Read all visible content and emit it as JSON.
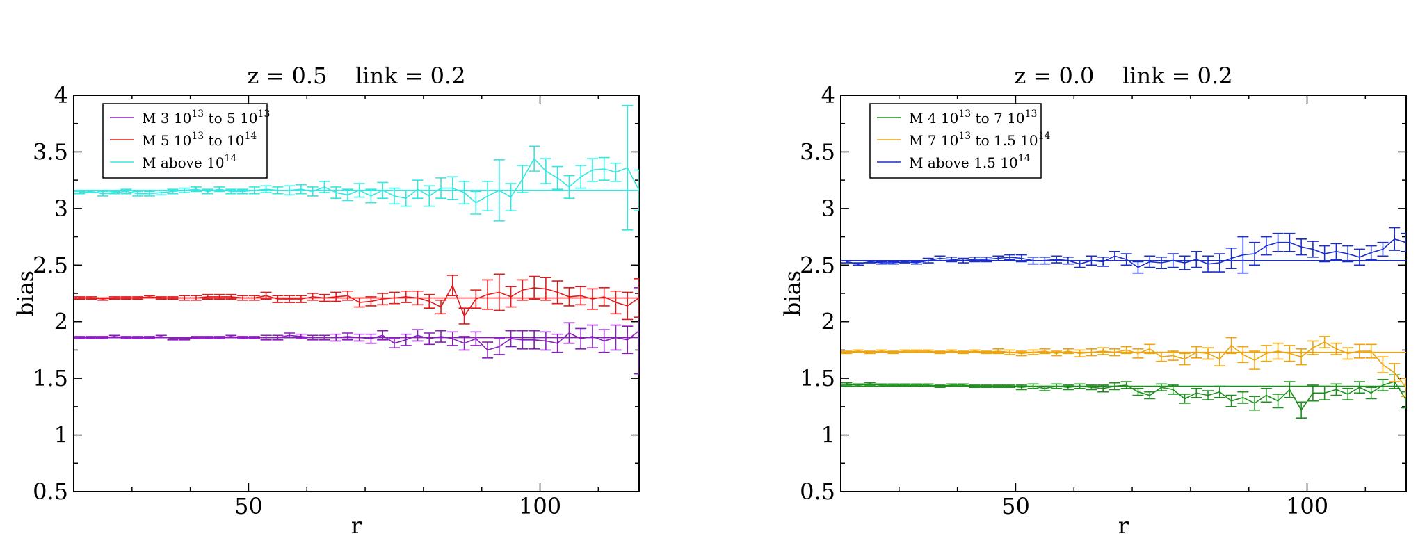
{
  "figure": {
    "background": "#ffffff"
  },
  "chart_data": [
    {
      "type": "line",
      "title": "z = 0.5    link = 0.2",
      "xlabel": "r",
      "ylabel": "bias",
      "xlim": [
        20,
        117
      ],
      "ylim": [
        0.5,
        4
      ],
      "xticks": [
        50,
        100
      ],
      "yticks": [
        0.5,
        1,
        1.5,
        2,
        2.5,
        3,
        3.5,
        4
      ],
      "ytick_labels": [
        "0.5",
        "1",
        "1.5",
        "2",
        "2.5",
        "3",
        "3.5",
        "4"
      ],
      "xtick_labels": [
        "50",
        "100"
      ],
      "grid": false,
      "legend_position": "top-left",
      "x": [
        21,
        23,
        25,
        27,
        29,
        31,
        33,
        35,
        37,
        39,
        41,
        43,
        45,
        47,
        49,
        51,
        53,
        55,
        57,
        59,
        61,
        63,
        65,
        67,
        69,
        71,
        73,
        75,
        77,
        79,
        81,
        83,
        85,
        87,
        89,
        91,
        93,
        95,
        97,
        99,
        101,
        103,
        105,
        107,
        109,
        111,
        113,
        115,
        117
      ],
      "series": [
        {
          "name": "M 3 10^13 to 5 10^13",
          "label": {
            "prefix": "M 3 10",
            "sup1": "13",
            "mid": " to 5 10",
            "sup2": "13"
          },
          "color": "#8b1dbf",
          "fit": 1.86,
          "values": [
            1.86,
            1.86,
            1.86,
            1.87,
            1.86,
            1.86,
            1.86,
            1.87,
            1.85,
            1.85,
            1.86,
            1.86,
            1.86,
            1.87,
            1.86,
            1.86,
            1.86,
            1.86,
            1.88,
            1.87,
            1.86,
            1.86,
            1.86,
            1.87,
            1.86,
            1.85,
            1.88,
            1.81,
            1.84,
            1.88,
            1.85,
            1.87,
            1.85,
            1.81,
            1.85,
            1.75,
            1.78,
            1.85,
            1.84,
            1.84,
            1.83,
            1.81,
            1.9,
            1.85,
            1.87,
            1.83,
            1.86,
            1.84,
            1.92
          ],
          "errors": [
            0.01,
            0.01,
            0.01,
            0.01,
            0.01,
            0.01,
            0.01,
            0.01,
            0.01,
            0.01,
            0.01,
            0.01,
            0.01,
            0.01,
            0.01,
            0.01,
            0.02,
            0.02,
            0.02,
            0.02,
            0.02,
            0.02,
            0.03,
            0.03,
            0.03,
            0.04,
            0.04,
            0.04,
            0.05,
            0.05,
            0.05,
            0.05,
            0.06,
            0.06,
            0.06,
            0.07,
            0.07,
            0.07,
            0.08,
            0.08,
            0.08,
            0.08,
            0.09,
            0.09,
            0.1,
            0.1,
            0.11,
            0.12,
            0.38
          ]
        },
        {
          "name": "M 5 10^13 to 10^14",
          "label": {
            "prefix": "M 5 10",
            "sup1": "13",
            "mid": " to 10",
            "sup2": "14"
          },
          "color": "#e31a1c",
          "fit": 2.21,
          "values": [
            2.21,
            2.21,
            2.2,
            2.21,
            2.21,
            2.21,
            2.22,
            2.21,
            2.21,
            2.21,
            2.21,
            2.22,
            2.22,
            2.22,
            2.21,
            2.21,
            2.23,
            2.2,
            2.2,
            2.2,
            2.22,
            2.21,
            2.22,
            2.23,
            2.17,
            2.18,
            2.2,
            2.21,
            2.22,
            2.21,
            2.18,
            2.13,
            2.32,
            2.05,
            2.2,
            2.24,
            2.26,
            2.22,
            2.28,
            2.3,
            2.29,
            2.26,
            2.22,
            2.23,
            2.2,
            2.22,
            2.17,
            2.14,
            2.21
          ],
          "errors": [
            0.01,
            0.01,
            0.01,
            0.01,
            0.01,
            0.01,
            0.01,
            0.01,
            0.01,
            0.02,
            0.02,
            0.02,
            0.02,
            0.02,
            0.02,
            0.02,
            0.03,
            0.03,
            0.03,
            0.03,
            0.03,
            0.03,
            0.04,
            0.04,
            0.04,
            0.04,
            0.05,
            0.05,
            0.05,
            0.06,
            0.06,
            0.06,
            0.09,
            0.07,
            0.08,
            0.13,
            0.16,
            0.09,
            0.09,
            0.1,
            0.1,
            0.1,
            0.08,
            0.08,
            0.09,
            0.08,
            0.1,
            0.12,
            0.17
          ]
        },
        {
          "name": "M above 10^14",
          "label": {
            "prefix": "M above 10",
            "sup1": "14",
            "mid": "",
            "sup2": ""
          },
          "color": "#33e8e0",
          "fit": 3.16,
          "values": [
            3.14,
            3.15,
            3.13,
            3.14,
            3.15,
            3.13,
            3.13,
            3.14,
            3.15,
            3.16,
            3.17,
            3.15,
            3.17,
            3.15,
            3.15,
            3.16,
            3.17,
            3.16,
            3.16,
            3.17,
            3.15,
            3.19,
            3.14,
            3.12,
            3.16,
            3.11,
            3.16,
            3.11,
            3.09,
            3.17,
            3.11,
            3.18,
            3.18,
            3.14,
            3.05,
            3.11,
            3.16,
            3.1,
            3.26,
            3.44,
            3.33,
            3.27,
            3.19,
            3.28,
            3.34,
            3.35,
            3.32,
            3.36,
            3.16
          ],
          "errors": [
            0.01,
            0.01,
            0.02,
            0.01,
            0.02,
            0.02,
            0.02,
            0.02,
            0.02,
            0.02,
            0.02,
            0.02,
            0.02,
            0.02,
            0.02,
            0.03,
            0.03,
            0.03,
            0.04,
            0.04,
            0.04,
            0.05,
            0.05,
            0.05,
            0.06,
            0.06,
            0.07,
            0.07,
            0.07,
            0.08,
            0.09,
            0.09,
            0.1,
            0.1,
            0.1,
            0.13,
            0.27,
            0.12,
            0.12,
            0.11,
            0.11,
            0.1,
            0.1,
            0.1,
            0.1,
            0.1,
            0.08,
            0.55,
            0.18
          ]
        }
      ]
    },
    {
      "type": "line",
      "title": "z = 0.0    link = 0.2",
      "xlabel": "r",
      "ylabel": "bias",
      "xlim": [
        20,
        117
      ],
      "ylim": [
        0.5,
        4
      ],
      "xticks": [
        50,
        100
      ],
      "yticks": [
        0.5,
        1,
        1.5,
        2,
        2.5,
        3,
        3.5,
        4
      ],
      "ytick_labels": [
        "0.5",
        "1",
        "1.5",
        "2",
        "2.5",
        "3",
        "3.5",
        "4"
      ],
      "xtick_labels": [
        "50",
        "100"
      ],
      "grid": false,
      "legend_position": "top-left",
      "x": [
        21,
        23,
        25,
        27,
        29,
        31,
        33,
        35,
        37,
        39,
        41,
        43,
        45,
        47,
        49,
        51,
        53,
        55,
        57,
        59,
        61,
        63,
        65,
        67,
        69,
        71,
        73,
        75,
        77,
        79,
        81,
        83,
        85,
        87,
        89,
        91,
        93,
        95,
        97,
        99,
        101,
        103,
        105,
        107,
        109,
        111,
        113,
        115,
        117
      ],
      "series": [
        {
          "name": "M 4 10^13 to 7 10^13",
          "label": {
            "prefix": "M 4 10",
            "sup1": "13",
            "mid": " to 7 10",
            "sup2": "13"
          },
          "color": "#1f8f1f",
          "fit": 1.43,
          "values": [
            1.45,
            1.44,
            1.45,
            1.44,
            1.44,
            1.44,
            1.44,
            1.44,
            1.43,
            1.44,
            1.44,
            1.43,
            1.43,
            1.43,
            1.43,
            1.42,
            1.43,
            1.41,
            1.43,
            1.42,
            1.43,
            1.42,
            1.41,
            1.43,
            1.44,
            1.38,
            1.35,
            1.42,
            1.4,
            1.32,
            1.37,
            1.35,
            1.38,
            1.3,
            1.33,
            1.28,
            1.35,
            1.3,
            1.4,
            1.22,
            1.37,
            1.37,
            1.4,
            1.36,
            1.42,
            1.37,
            1.44,
            1.47,
            1.31
          ],
          "errors": [
            0.01,
            0.01,
            0.01,
            0.01,
            0.01,
            0.01,
            0.01,
            0.01,
            0.01,
            0.01,
            0.01,
            0.01,
            0.01,
            0.01,
            0.01,
            0.02,
            0.02,
            0.02,
            0.02,
            0.02,
            0.02,
            0.02,
            0.03,
            0.03,
            0.03,
            0.03,
            0.03,
            0.03,
            0.04,
            0.04,
            0.04,
            0.04,
            0.05,
            0.05,
            0.05,
            0.06,
            0.06,
            0.06,
            0.07,
            0.07,
            0.07,
            0.06,
            0.05,
            0.05,
            0.05,
            0.05,
            0.05,
            0.06,
            0.07
          ]
        },
        {
          "name": "M 7 10^13 to 1.5 10^14",
          "label": {
            "prefix": "M 7 10",
            "sup1": "13",
            "mid": " to 1.5 10",
            "sup2": "14"
          },
          "color": "#f0a30a",
          "fit": 1.73,
          "values": [
            1.73,
            1.74,
            1.73,
            1.74,
            1.73,
            1.74,
            1.74,
            1.74,
            1.73,
            1.74,
            1.73,
            1.74,
            1.73,
            1.74,
            1.73,
            1.72,
            1.73,
            1.74,
            1.72,
            1.74,
            1.72,
            1.73,
            1.74,
            1.73,
            1.75,
            1.72,
            1.76,
            1.69,
            1.7,
            1.67,
            1.73,
            1.72,
            1.67,
            1.79,
            1.71,
            1.66,
            1.72,
            1.74,
            1.72,
            1.69,
            1.77,
            1.82,
            1.76,
            1.72,
            1.74,
            1.74,
            1.62,
            1.55,
            1.42
          ],
          "errors": [
            0.01,
            0.01,
            0.01,
            0.01,
            0.01,
            0.01,
            0.01,
            0.01,
            0.01,
            0.01,
            0.01,
            0.01,
            0.01,
            0.02,
            0.02,
            0.02,
            0.02,
            0.02,
            0.02,
            0.02,
            0.03,
            0.03,
            0.03,
            0.03,
            0.03,
            0.04,
            0.04,
            0.04,
            0.04,
            0.05,
            0.05,
            0.05,
            0.06,
            0.07,
            0.07,
            0.08,
            0.07,
            0.07,
            0.07,
            0.07,
            0.06,
            0.05,
            0.05,
            0.05,
            0.06,
            0.06,
            0.07,
            0.08,
            0.08
          ]
        },
        {
          "name": "M above 1.5 10^14",
          "label": {
            "prefix": "M above 1.5 10",
            "sup1": "14",
            "mid": "",
            "sup2": ""
          },
          "color": "#1a2ecf",
          "fit": 2.54,
          "values": [
            2.53,
            2.51,
            2.53,
            2.52,
            2.52,
            2.53,
            2.52,
            2.54,
            2.56,
            2.55,
            2.54,
            2.55,
            2.55,
            2.56,
            2.57,
            2.56,
            2.54,
            2.54,
            2.55,
            2.54,
            2.51,
            2.54,
            2.53,
            2.58,
            2.55,
            2.48,
            2.53,
            2.52,
            2.54,
            2.52,
            2.55,
            2.51,
            2.52,
            2.56,
            2.59,
            2.6,
            2.67,
            2.7,
            2.7,
            2.66,
            2.64,
            2.6,
            2.62,
            2.6,
            2.57,
            2.61,
            2.64,
            2.73,
            2.7
          ],
          "errors": [
            0.01,
            0.01,
            0.01,
            0.01,
            0.01,
            0.01,
            0.01,
            0.02,
            0.02,
            0.02,
            0.02,
            0.02,
            0.02,
            0.02,
            0.02,
            0.03,
            0.03,
            0.03,
            0.03,
            0.03,
            0.03,
            0.04,
            0.04,
            0.04,
            0.05,
            0.05,
            0.05,
            0.05,
            0.06,
            0.06,
            0.07,
            0.07,
            0.08,
            0.09,
            0.16,
            0.1,
            0.08,
            0.08,
            0.08,
            0.07,
            0.07,
            0.07,
            0.07,
            0.07,
            0.07,
            0.06,
            0.06,
            0.1,
            0.08
          ]
        }
      ]
    }
  ]
}
